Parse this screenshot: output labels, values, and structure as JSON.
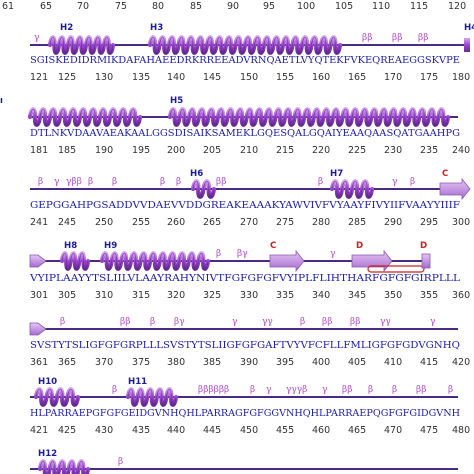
{
  "colors": {
    "line": "#4b2a82",
    "helix": "#8c3bc2",
    "helix_light": "#d9a5f2",
    "strand": "#c18fe0",
    "turn": "#b14ad3",
    "helix_label": "#1a1aa6",
    "strand_label": "#cc2020",
    "sequence": "#1c1cb4",
    "numbers": "#333333"
  },
  "top_partial": {
    "numbers": [
      "61",
      "65",
      "70",
      "75",
      "80",
      "85",
      "90",
      "95",
      "100",
      "105",
      "110",
      "115",
      "120"
    ]
  },
  "blocks": [
    {
      "sequence": "SGISKEDIDRMIKDAFAHAEEDRKRREEADVRNQAETLVYQTEKFVKEQREAEGGSKVPE",
      "numbers": [
        "121",
        "125",
        "130",
        "135",
        "140",
        "145",
        "150",
        "155",
        "160",
        "165",
        "170",
        "175",
        "180"
      ],
      "helix_labels": [
        "H2",
        "H3",
        "H4"
      ],
      "turns": [
        "γ",
        "ββ",
        "ββ",
        "ββ"
      ],
      "sheet_labels": []
    },
    {
      "sequence": "DTLNKVDAAVAEAKAALGGSDISAIKSAMEKLGQESQALGQAIYEAAQAASQATGAAHPG",
      "numbers": [
        "181",
        "185",
        "190",
        "195",
        "200",
        "205",
        "210",
        "215",
        "220",
        "225",
        "230",
        "235",
        "240"
      ],
      "helix_labels": [
        "H5"
      ],
      "turns": [],
      "sheet_labels": []
    },
    {
      "sequence": "GEPGGAHPGSADDVVDAEVVDDGREAKEAAAKYAWVIVFVYAAYFIVYIIFVAAYYIIIF",
      "numbers": [
        "241",
        "245",
        "250",
        "255",
        "260",
        "265",
        "270",
        "275",
        "280",
        "285",
        "290",
        "295",
        "300"
      ],
      "helix_labels": [
        "H6",
        "H7"
      ],
      "turns": [
        "β",
        "γ",
        "γββ",
        "β",
        "β",
        "β",
        "β",
        "ββ",
        "β",
        "γ",
        "β"
      ],
      "sheet_labels": [
        "C"
      ]
    },
    {
      "sequence": "VYIPLAAYYTSLIILVLAAYRAHYNIVTFGFGFGFVYIPLFLIHTHARFGFGFGIRPLLL",
      "numbers": [
        "301",
        "305",
        "310",
        "315",
        "320",
        "325",
        "330",
        "335",
        "340",
        "345",
        "350",
        "355",
        "360"
      ],
      "helix_labels": [
        "H8",
        "H9"
      ],
      "turns": [
        "β",
        "βγ",
        "γ"
      ],
      "sheet_labels": [
        "C",
        "D",
        "D"
      ]
    },
    {
      "sequence": "SVSTYTSLIGFGFGRPLLLSVSTYTSLIIGFGFGAFTVYVFCFLLFMLIGFGFGDVGNHQ",
      "numbers": [
        "361",
        "365",
        "370",
        "375",
        "380",
        "385",
        "390",
        "395",
        "400",
        "405",
        "410",
        "415",
        "420"
      ],
      "helix_labels": [],
      "turns": [
        "β",
        "ββ",
        "β",
        "βγ",
        "γ",
        "γγ",
        "β",
        "ββ",
        "ββ",
        "γγ",
        "γ"
      ],
      "sheet_labels": []
    },
    {
      "sequence": "HLPARRAEPGFGFGEIDGVNHQHLPARRAGFGFGGVNHQHLPARRAEPQGFGFGIDGVNH",
      "numbers": [
        "421",
        "425",
        "430",
        "435",
        "440",
        "445",
        "450",
        "455",
        "460",
        "465",
        "470",
        "475",
        "480"
      ],
      "helix_labels": [
        "H10",
        "H11"
      ],
      "turns": [
        "β",
        "ββββββ",
        "β",
        "γ",
        "γγγβ",
        "γ",
        "ββ",
        "β",
        "β",
        "ββ",
        "β"
      ],
      "sheet_labels": []
    }
  ],
  "tail": {
    "helix_labels": [
      "H12"
    ],
    "turns": [
      "β"
    ]
  }
}
